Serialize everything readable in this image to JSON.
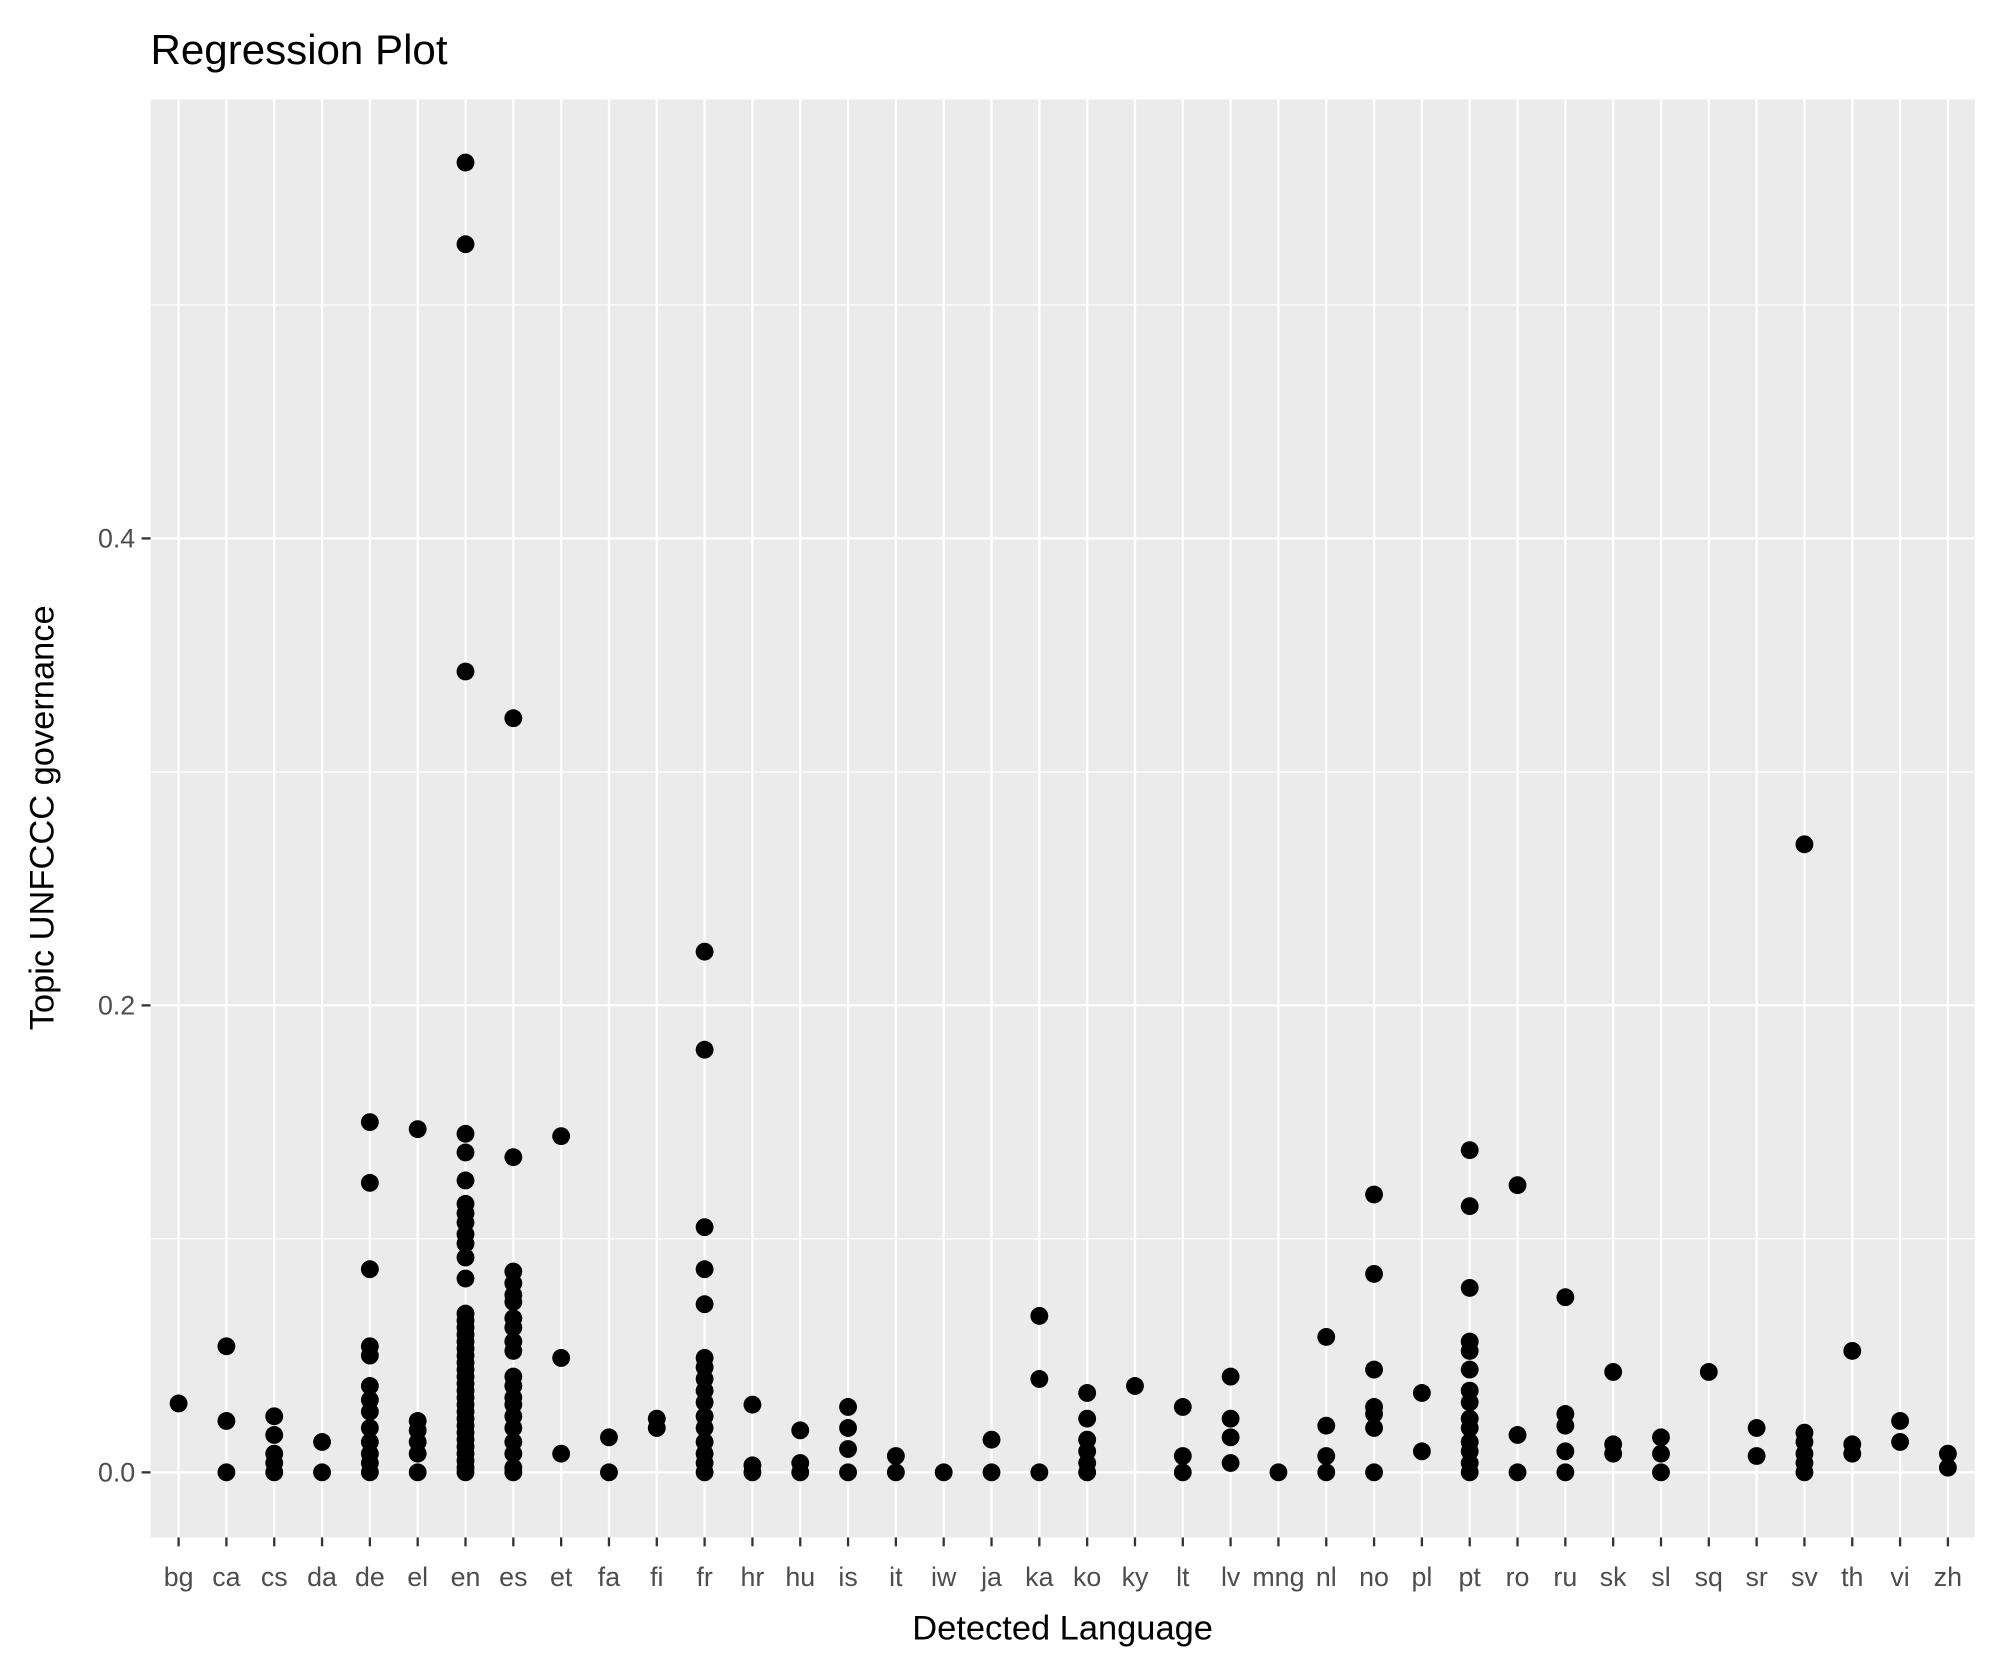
{
  "chart_data": {
    "type": "scatter",
    "title": "Regression Plot",
    "xlabel": "Detected Language",
    "ylabel": "Topic UNFCCC governance",
    "ylim": [
      -0.03,
      0.58
    ],
    "yticks": [
      0.0,
      0.2,
      0.4
    ],
    "ytick_labels": [
      "0.0",
      "0.2",
      "0.4"
    ],
    "grid": true,
    "point_color": "#000000",
    "panel_color": "#EBEBEB",
    "categories": [
      "bg",
      "ca",
      "cs",
      "da",
      "de",
      "el",
      "en",
      "es",
      "et",
      "fa",
      "fi",
      "fr",
      "hr",
      "hu",
      "is",
      "it",
      "iw",
      "ja",
      "ka",
      "ko",
      "ky",
      "lt",
      "lv",
      "mng",
      "nl",
      "no",
      "pl",
      "pt",
      "ro",
      "ru",
      "sk",
      "sl",
      "sq",
      "sr",
      "sv",
      "th",
      "vi",
      "zh"
    ],
    "points": {
      "bg": [
        0.0295
      ],
      "ca": [
        0.054,
        0.022,
        0
      ],
      "cs": [
        0.024,
        0.016,
        0.008,
        0.004,
        0
      ],
      "da": [
        0.013,
        0
      ],
      "de": [
        0.15,
        0.124,
        0.087,
        0.054,
        0.05,
        0.037,
        0.031,
        0.026,
        0.019,
        0.013,
        0.008,
        0.004,
        0
      ],
      "el": [
        0.147,
        0.022,
        0.018,
        0.013,
        0.008,
        0
      ],
      "en": [
        0.561,
        0.526,
        0.343,
        0.145,
        0.137,
        0.125,
        0.115,
        0.111,
        0.107,
        0.102,
        0.098,
        0.092,
        0.083,
        0.068,
        0.065,
        0.062,
        0.059,
        0.056,
        0.053,
        0.05,
        0.047,
        0.044,
        0.041,
        0.038,
        0.035,
        0.032,
        0.029,
        0.026,
        0.023,
        0.02,
        0.017,
        0.014,
        0.011,
        0.008,
        0.005,
        0.002,
        0
      ],
      "es": [
        0.323,
        0.135,
        0.086,
        0.081,
        0.076,
        0.073,
        0.066,
        0.062,
        0.056,
        0.052,
        0.041,
        0.037,
        0.032,
        0.029,
        0.024,
        0.019,
        0.013,
        0.008,
        0.002,
        0
      ],
      "et": [
        0.144,
        0.049,
        0.008
      ],
      "fa": [
        0.015,
        0
      ],
      "fi": [
        0.023,
        0.019
      ],
      "fr": [
        0.223,
        0.181,
        0.105,
        0.087,
        0.072,
        0.049,
        0.045,
        0.04,
        0.035,
        0.03,
        0.024,
        0.019,
        0.013,
        0.008,
        0.004,
        0
      ],
      "hr": [
        0.029,
        0.003,
        0
      ],
      "hu": [
        0.018,
        0.004,
        0
      ],
      "is": [
        0.028,
        0.019,
        0.01,
        0
      ],
      "it": [
        0.007,
        0
      ],
      "iw": [
        0
      ],
      "ja": [
        0.014,
        0
      ],
      "ka": [
        0.067,
        0.04,
        0
      ],
      "ko": [
        0.034,
        0.023,
        0.014,
        0.009,
        0.004,
        0
      ],
      "ky": [
        0.037
      ],
      "lt": [
        0.028,
        0.007,
        0
      ],
      "lv": [
        0.041,
        0.023,
        0.015,
        0.004
      ],
      "mng": [
        0
      ],
      "nl": [
        0.058,
        0.02,
        0.007,
        0
      ],
      "no": [
        0.119,
        0.085,
        0.044,
        0.028,
        0.025,
        0.019,
        0
      ],
      "pl": [
        0.034,
        0.009
      ],
      "pt": [
        0.138,
        0.114,
        0.079,
        0.056,
        0.052,
        0.044,
        0.035,
        0.03,
        0.023,
        0.019,
        0.013,
        0.009,
        0.004,
        0
      ],
      "ro": [
        0.123,
        0.016,
        0
      ],
      "ru": [
        0.075,
        0.025,
        0.02,
        0.009,
        0
      ],
      "sk": [
        0.043,
        0.012,
        0.008
      ],
      "sl": [
        0.015,
        0.008,
        0
      ],
      "sq": [
        0.043
      ],
      "sr": [
        0.019,
        0.007
      ],
      "sv": [
        0.269,
        0.017,
        0.013,
        0.008,
        0.004,
        0
      ],
      "th": [
        0.052,
        0.012,
        0.008
      ],
      "vi": [
        0.022,
        0.013
      ],
      "zh": [
        0.008,
        0.002
      ]
    }
  }
}
